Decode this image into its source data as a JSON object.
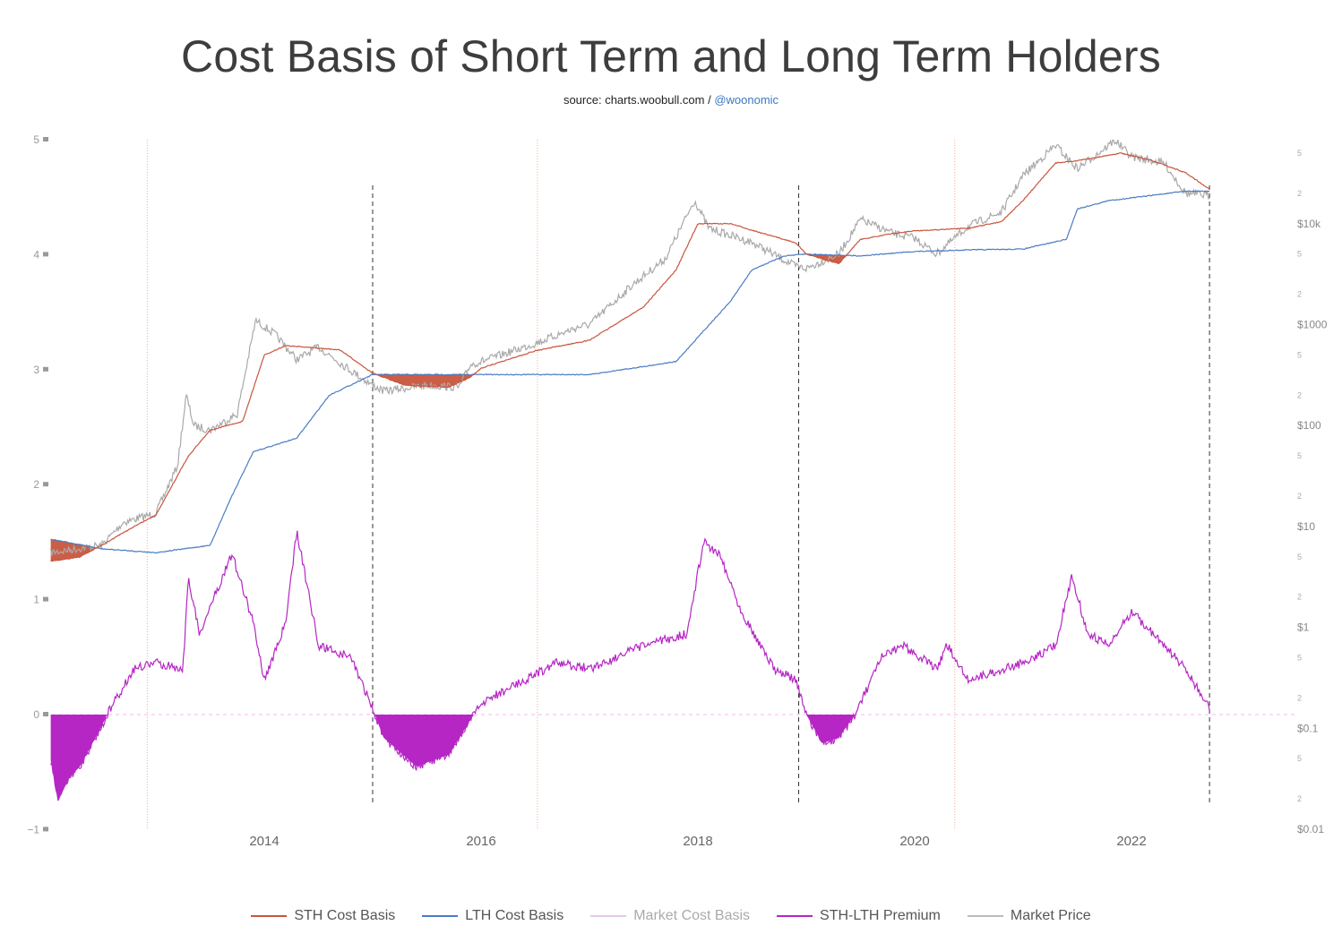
{
  "title": "Cost Basis of Short Term and Long Term Holders",
  "subtitle": {
    "source": "source: charts.woobull.com / ",
    "handle": "@woonomic"
  },
  "chart_data": {
    "type": "line",
    "title": "Cost Basis of Short Term and Long Term Holders",
    "x_ticks": [
      "2014",
      "2016",
      "2018",
      "2020",
      "2022"
    ],
    "xlim": [
      2012.0,
      2023.3
    ],
    "left_axis": {
      "ticks": [
        -1,
        0,
        1,
        2,
        3,
        4,
        5
      ],
      "ylim": [
        -1,
        5
      ],
      "scale": "linear"
    },
    "right_axis": {
      "scale": "log",
      "ylim": [
        0.01,
        100000
      ],
      "major_ticks": [
        {
          "v": 0.01,
          "label": "$0.01"
        },
        {
          "v": 0.1,
          "label": "$0.1"
        },
        {
          "v": 1,
          "label": "$1"
        },
        {
          "v": 10,
          "label": "$10"
        },
        {
          "v": 100,
          "label": "$100"
        },
        {
          "v": 1000,
          "label": "$1000"
        },
        {
          "v": 10000,
          "label": "$10k"
        }
      ],
      "minor_labels": [
        "2",
        "5"
      ]
    },
    "grid": false,
    "legend_placement": "bottom",
    "series": [
      {
        "name": "STH Cost Basis",
        "axis": "right",
        "color": "#c8553d",
        "x": [
          2012.03,
          2012.3,
          2012.5,
          2012.8,
          2013.0,
          2013.3,
          2013.5,
          2013.8,
          2014.0,
          2014.2,
          2014.7,
          2015.0,
          2015.3,
          2015.7,
          2015.9,
          2016.0,
          2016.5,
          2017.0,
          2017.5,
          2017.8,
          2018.0,
          2018.3,
          2018.6,
          2018.9,
          2019.0,
          2019.3,
          2019.5,
          2019.8,
          2020.0,
          2020.5,
          2020.8,
          2021.0,
          2021.3,
          2021.5,
          2021.9,
          2022.2,
          2022.5,
          2022.72
        ],
        "y": [
          4.5,
          5,
          6.5,
          10,
          13,
          50,
          90,
          110,
          500,
          620,
          560,
          330,
          250,
          240,
          300,
          370,
          550,
          700,
          1500,
          3500,
          10000,
          10000,
          8000,
          6500,
          5000,
          4000,
          7000,
          8000,
          8500,
          9000,
          10500,
          17000,
          40000,
          42000,
          50000,
          42000,
          32000,
          22000
        ]
      },
      {
        "name": "LTH Cost Basis",
        "axis": "right",
        "color": "#4a7cc4",
        "x": [
          2012.03,
          2012.5,
          2013.0,
          2013.5,
          2013.7,
          2013.9,
          2014.3,
          2014.6,
          2015.0,
          2016.0,
          2017.0,
          2017.8,
          2018.0,
          2018.3,
          2018.5,
          2018.8,
          2019.0,
          2019.5,
          2020.0,
          2020.5,
          2021.0,
          2021.4,
          2021.5,
          2021.8,
          2022.0,
          2022.5,
          2022.72
        ],
        "y": [
          7.5,
          6,
          5.5,
          6.5,
          20,
          55,
          75,
          200,
          320,
          320,
          320,
          430,
          750,
          1700,
          3500,
          4800,
          5000,
          4800,
          5300,
          5500,
          5600,
          7000,
          14000,
          17000,
          18000,
          21000,
          21000
        ]
      },
      {
        "name": "Market Cost Basis",
        "axis": "right",
        "color": "#e4c8ee",
        "x": [],
        "y": []
      },
      {
        "name": "STH-LTH Premium",
        "axis": "left",
        "color": "#b526c4",
        "x": [
          2012.03,
          2012.1,
          2012.2,
          2012.3,
          2012.5,
          2012.55,
          2012.8,
          2013.0,
          2013.25,
          2013.3,
          2013.4,
          2013.7,
          2013.9,
          2014.0,
          2014.2,
          2014.3,
          2014.5,
          2014.8,
          2015.0,
          2015.1,
          2015.4,
          2015.7,
          2015.9,
          2016.0,
          2016.4,
          2016.7,
          2017.0,
          2017.5,
          2017.9,
          2018.05,
          2018.2,
          2018.4,
          2018.7,
          2018.9,
          2019.0,
          2019.15,
          2019.3,
          2019.45,
          2019.7,
          2019.9,
          2020.2,
          2020.3,
          2020.5,
          2021.0,
          2021.3,
          2021.45,
          2021.6,
          2021.8,
          2022.0,
          2022.3,
          2022.5,
          2022.72
        ],
        "y": [
          -0.4,
          -0.75,
          -0.55,
          -0.45,
          -0.1,
          0,
          0.4,
          0.45,
          0.4,
          1.2,
          0.7,
          1.4,
          0.8,
          0.3,
          0.8,
          1.6,
          0.6,
          0.5,
          0.05,
          -0.2,
          -0.45,
          -0.35,
          -0.05,
          0.1,
          0.3,
          0.45,
          0.4,
          0.6,
          0.7,
          1.5,
          1.4,
          0.9,
          0.4,
          0.3,
          0,
          -0.25,
          -0.2,
          0,
          0.5,
          0.6,
          0.4,
          0.6,
          0.3,
          0.45,
          0.6,
          1.2,
          0.7,
          0.6,
          0.9,
          0.6,
          0.4,
          0.05
        ]
      },
      {
        "name": "Market Price",
        "axis": "right",
        "color": "#a9a9a9",
        "x": [
          2012.03,
          2012.5,
          2012.7,
          2013.0,
          2013.2,
          2013.28,
          2013.35,
          2013.5,
          2013.75,
          2013.92,
          2014.1,
          2014.3,
          2014.5,
          2014.8,
          2015.0,
          2015.1,
          2015.5,
          2015.8,
          2015.9,
          2016.0,
          2016.5,
          2016.9,
          2017.0,
          2017.4,
          2017.7,
          2017.97,
          2018.1,
          2018.5,
          2018.9,
          2019.0,
          2019.3,
          2019.5,
          2019.8,
          2020.0,
          2020.2,
          2020.5,
          2020.8,
          2021.0,
          2021.3,
          2021.5,
          2021.85,
          2022.0,
          2022.3,
          2022.5,
          2022.72
        ],
        "y": [
          5.5,
          6.5,
          11,
          13.5,
          40,
          200,
          100,
          90,
          130,
          1100,
          800,
          450,
          600,
          350,
          250,
          220,
          250,
          240,
          400,
          430,
          650,
          950,
          1000,
          2500,
          4500,
          17000,
          9000,
          6500,
          3800,
          3600,
          5000,
          11000,
          8000,
          7200,
          5000,
          9500,
          13000,
          30000,
          60000,
          35000,
          67000,
          46000,
          40000,
          20000,
          19000
        ]
      }
    ],
    "vertical_markers": {
      "dashed": [
        2015.0,
        2018.93,
        2022.72
      ],
      "dotted_halvings": [
        2012.92,
        2016.52,
        2020.37
      ]
    },
    "zero_line": 0
  },
  "legend": [
    {
      "label": "STH Cost Basis",
      "color": "#c8553d"
    },
    {
      "label": "LTH Cost Basis",
      "color": "#4a7cc4"
    },
    {
      "label": "Market Cost Basis",
      "color": "#e4c8ee",
      "muted": true
    },
    {
      "label": "STH-LTH Premium",
      "color": "#b526c4"
    },
    {
      "label": "Market Price",
      "color": "#bbbbbb"
    }
  ]
}
